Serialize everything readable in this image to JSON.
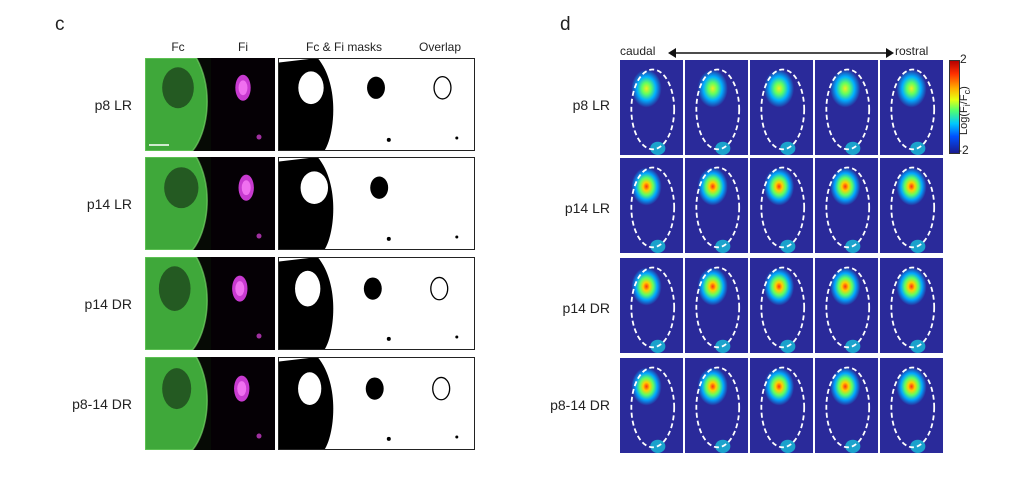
{
  "panel_c": {
    "letter": "c",
    "columns": [
      "Fc",
      "Fi",
      "Fc & Fi masks",
      "Overlap"
    ],
    "rows": [
      "p8 LR",
      "p14 LR",
      "p14 DR",
      "p8-14 DR"
    ]
  },
  "panel_d": {
    "letter": "d",
    "axis_left": "caudal",
    "axis_right": "rostral",
    "rows": [
      "p8 LR",
      "p14 LR",
      "p14 DR",
      "p8-14 DR"
    ],
    "colorbar": {
      "max": "2",
      "min": "-2",
      "label_main": "Log(F",
      "label_sub1": "i",
      "label_mid": "/F",
      "label_sub2": "c",
      "label_end": ")"
    }
  }
}
